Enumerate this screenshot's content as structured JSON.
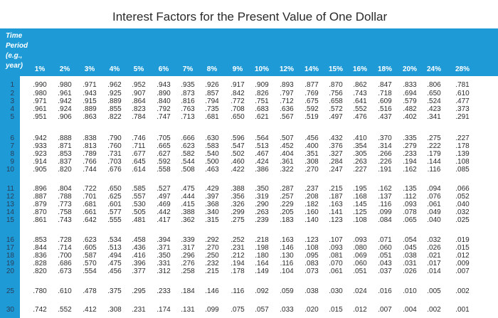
{
  "title": "Interest Factors for the Present Value of One Dollar",
  "corner_label": [
    "Time",
    "Period",
    "(e.g.,",
    "year)"
  ],
  "columns": [
    "1%",
    "2%",
    "3%",
    "4%",
    "5%",
    "6%",
    "7%",
    "8%",
    "9%",
    "10%",
    "12%",
    "14%",
    "15%",
    "16%",
    "18%",
    "20%",
    "24%",
    "28%"
  ],
  "rows": [
    {
      "period": "1",
      "values": [
        ".990",
        ".980",
        ".971",
        ".962",
        ".952",
        ".943",
        ".935",
        ".926",
        ".917",
        ".909",
        ".893",
        ".877",
        ".870",
        ".862",
        ".847",
        ".833",
        ".806",
        ".781"
      ]
    },
    {
      "period": "2",
      "values": [
        ".980",
        ".961",
        ".943",
        ".925",
        ".907",
        ".890",
        ".873",
        ".857",
        ".842",
        ".826",
        ".797",
        ".769",
        ".756",
        ".743",
        ".718",
        ".694",
        ".650",
        ".610"
      ]
    },
    {
      "period": "3",
      "values": [
        ".971",
        ".942",
        ".915",
        ".889",
        ".864",
        ".840",
        ".816",
        ".794",
        ".772",
        ".751",
        ".712",
        ".675",
        ".658",
        ".641",
        ".609",
        ".579",
        ".524",
        ".477"
      ]
    },
    {
      "period": "4",
      "values": [
        ".961",
        ".924",
        ".889",
        ".855",
        ".823",
        ".792",
        ".763",
        ".735",
        ".708",
        ".683",
        ".636",
        ".592",
        ".572",
        ".552",
        ".516",
        ".482",
        ".423",
        ".373"
      ]
    },
    {
      "period": "5",
      "values": [
        ".951",
        ".906",
        ".863",
        ".822",
        ".784",
        ".747",
        ".713",
        ".681",
        ".650",
        ".621",
        ".567",
        ".519",
        ".497",
        ".476",
        ".437",
        ".402",
        ".341",
        ".291"
      ]
    },
    {
      "period": "6",
      "values": [
        ".942",
        ".888",
        ".838",
        ".790",
        ".746",
        ".705",
        ".666",
        ".630",
        ".596",
        ".564",
        ".507",
        ".456",
        ".432",
        ".410",
        ".370",
        ".335",
        ".275",
        ".227"
      ]
    },
    {
      "period": "7",
      "values": [
        ".933",
        ".871",
        ".813",
        ".760",
        ".711",
        ".665",
        ".623",
        ".583",
        ".547",
        ".513",
        ".452",
        ".400",
        ".376",
        ".354",
        ".314",
        ".279",
        ".222",
        ".178"
      ]
    },
    {
      "period": "8",
      "values": [
        ".923",
        ".853",
        ".789",
        ".731",
        ".677",
        ".627",
        ".582",
        ".540",
        ".502",
        ".467",
        ".404",
        ".351",
        ".327",
        ".305",
        ".266",
        ".233",
        ".179",
        ".139"
      ]
    },
    {
      "period": "9",
      "values": [
        ".914",
        ".837",
        ".766",
        ".703",
        ".645",
        ".592",
        ".544",
        ".500",
        ".460",
        ".424",
        ".361",
        ".308",
        ".284",
        ".263",
        ".226",
        ".194",
        ".144",
        ".108"
      ]
    },
    {
      "period": "10",
      "values": [
        ".905",
        ".820",
        ".744",
        ".676",
        ".614",
        ".558",
        ".508",
        ".463",
        ".422",
        ".386",
        ".322",
        ".270",
        ".247",
        ".227",
        ".191",
        ".162",
        ".116",
        ".085"
      ]
    },
    {
      "period": "11",
      "values": [
        ".896",
        ".804",
        ".722",
        ".650",
        ".585",
        ".527",
        ".475",
        ".429",
        ".388",
        ".350",
        ".287",
        ".237",
        ".215",
        ".195",
        ".162",
        ".135",
        ".094",
        ".066"
      ]
    },
    {
      "period": "12",
      "values": [
        ".887",
        ".788",
        ".701",
        ".625",
        ".557",
        ".497",
        ".444",
        ".397",
        ".356",
        ".319",
        ".257",
        ".208",
        ".187",
        ".168",
        ".137",
        ".112",
        ".076",
        ".052"
      ]
    },
    {
      "period": "13",
      "values": [
        ".879",
        ".773",
        ".681",
        ".601",
        ".530",
        ".469",
        ".415",
        ".368",
        ".326",
        ".290",
        ".229",
        ".182",
        ".163",
        ".145",
        ".116",
        ".093",
        ".061",
        ".040"
      ]
    },
    {
      "period": "14",
      "values": [
        ".870",
        ".758",
        ".661",
        ".577",
        ".505",
        ".442",
        ".388",
        ".340",
        ".299",
        ".263",
        ".205",
        ".160",
        ".141",
        ".125",
        ".099",
        ".078",
        ".049",
        ".032"
      ]
    },
    {
      "period": "15",
      "values": [
        ".861",
        ".743",
        ".642",
        ".555",
        ".481",
        ".417",
        ".362",
        ".315",
        ".275",
        ".239",
        ".183",
        ".140",
        ".123",
        ".108",
        ".084",
        ".065",
        ".040",
        ".025"
      ]
    },
    {
      "period": "16",
      "values": [
        ".853",
        ".728",
        ".623",
        ".534",
        ".458",
        ".394",
        ".339",
        ".292",
        ".252",
        ".218",
        ".163",
        ".123",
        ".107",
        ".093",
        ".071",
        ".054",
        ".032",
        ".019"
      ]
    },
    {
      "period": "17",
      "values": [
        ".844",
        ".714",
        ".605",
        ".513",
        ".436",
        ".371",
        ".317",
        ".270",
        ".231",
        ".198",
        ".146",
        ".108",
        ".093",
        ".080",
        ".060",
        ".045",
        ".026",
        ".015"
      ]
    },
    {
      "period": "18",
      "values": [
        ".836",
        ".700",
        ".587",
        ".494",
        ".416",
        ".350",
        ".296",
        ".250",
        ".212",
        ".180",
        ".130",
        ".095",
        ".081",
        ".069",
        ".051",
        ".038",
        ".021",
        ".012"
      ]
    },
    {
      "period": "19",
      "values": [
        ".828",
        ".686",
        ".570",
        ".475",
        ".396",
        ".331",
        ".276",
        ".232",
        ".194",
        ".164",
        ".116",
        ".083",
        ".070",
        ".060",
        ".043",
        ".031",
        ".017",
        ".009"
      ]
    },
    {
      "period": "20",
      "values": [
        ".820",
        ".673",
        ".554",
        ".456",
        ".377",
        ".312",
        ".258",
        ".215",
        ".178",
        ".149",
        ".104",
        ".073",
        ".061",
        ".051",
        ".037",
        ".026",
        ".014",
        ".007"
      ]
    },
    {
      "period": "25",
      "values": [
        ".780",
        ".610",
        ".478",
        ".375",
        ".295",
        ".233",
        ".184",
        ".146",
        ".116",
        ".092",
        ".059",
        ".038",
        ".030",
        ".024",
        ".016",
        ".010",
        ".005",
        ".002"
      ]
    },
    {
      "period": "30",
      "values": [
        ".742",
        ".552",
        ".412",
        ".308",
        ".231",
        ".174",
        ".131",
        ".099",
        ".075",
        ".057",
        ".033",
        ".020",
        ".015",
        ".012",
        ".007",
        ".004",
        ".002",
        ".001"
      ]
    }
  ],
  "colors": {
    "header_band": "#1e9bd7",
    "row_label": "#2a3c58",
    "text": "#2a2a2a"
  }
}
